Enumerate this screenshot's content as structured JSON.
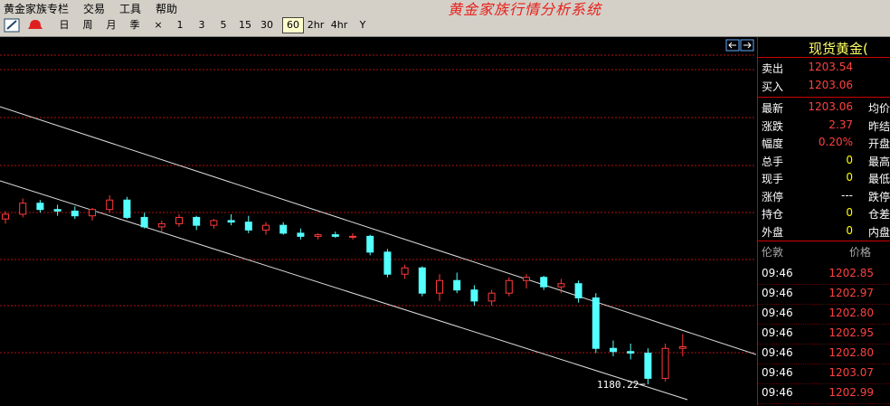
{
  "menu": [
    "黄金家族专栏",
    "交易",
    "工具",
    "帮助"
  ],
  "app_title": "黄金家族行情分析系统",
  "toolbar": [
    "日",
    "周",
    "月",
    "季",
    "×",
    "1",
    "3",
    "5",
    "15",
    "30",
    "60",
    "2hr",
    "4hr",
    "Y"
  ],
  "active_period_index": 10,
  "chart": {
    "up_color": "#ff3a3a",
    "down_color": "#54ffff",
    "low_label": "1180.22",
    "low_candle_index": 37,
    "candles": [
      [
        1285,
        1290,
        1282,
        1288
      ],
      [
        1288,
        1298,
        1286,
        1295
      ],
      [
        1295,
        1297,
        1289,
        1291
      ],
      [
        1291,
        1294,
        1287,
        1290
      ],
      [
        1290,
        1293,
        1285,
        1287
      ],
      [
        1287,
        1292,
        1284,
        1291
      ],
      [
        1291,
        1300,
        1289,
        1297
      ],
      [
        1297,
        1299,
        1285,
        1286
      ],
      [
        1286,
        1289,
        1279,
        1280
      ],
      [
        1280,
        1284,
        1277,
        1282
      ],
      [
        1282,
        1288,
        1280,
        1286
      ],
      [
        1286,
        1287,
        1278,
        1281
      ],
      [
        1281,
        1285,
        1279,
        1284
      ],
      [
        1284,
        1288,
        1281,
        1283
      ],
      [
        1283,
        1287,
        1276,
        1278
      ],
      [
        1278,
        1283,
        1275,
        1281
      ],
      [
        1281,
        1283,
        1275,
        1276
      ],
      [
        1276,
        1279,
        1272,
        1274
      ],
      [
        1274,
        1276,
        1272,
        1275
      ],
      [
        1275,
        1277,
        1273,
        1274
      ],
      [
        1274,
        1276,
        1272,
        1274
      ],
      [
        1274,
        1275,
        1262,
        1264
      ],
      [
        1264,
        1266,
        1248,
        1250
      ],
      [
        1250,
        1256,
        1247,
        1254
      ],
      [
        1254,
        1255,
        1236,
        1238
      ],
      [
        1238,
        1250,
        1233,
        1246
      ],
      [
        1246,
        1251,
        1238,
        1240
      ],
      [
        1240,
        1243,
        1230,
        1233
      ],
      [
        1233,
        1240,
        1230,
        1238
      ],
      [
        1238,
        1248,
        1236,
        1246
      ],
      [
        1246,
        1250,
        1241,
        1248
      ],
      [
        1248,
        1249,
        1240,
        1242
      ],
      [
        1242,
        1247,
        1238,
        1244
      ],
      [
        1244,
        1246,
        1232,
        1235
      ],
      [
        1235,
        1238,
        1200,
        1203
      ],
      [
        1203,
        1208,
        1198,
        1201
      ],
      [
        1201,
        1206,
        1196,
        1200
      ],
      [
        1200,
        1203,
        1180.22,
        1184
      ],
      [
        1184,
        1206,
        1182,
        1203
      ],
      [
        1203,
        1212,
        1198,
        1204
      ]
    ]
  },
  "quote": {
    "title": "现货黄金(",
    "rows": [
      {
        "label": "卖出",
        "value": "1203.54",
        "color": "#ff4040"
      },
      {
        "label": "买入",
        "value": "1203.06",
        "color": "#ff4040"
      },
      {
        "label": "最新",
        "value": "1203.06",
        "label2": "均价",
        "color": "#ff4040"
      },
      {
        "label": "涨跌",
        "value": "2.37",
        "label2": "昨结",
        "color": "#ff4040"
      },
      {
        "label": "幅度",
        "value": "0.20%",
        "label2": "开盘",
        "color": "#ff4040"
      },
      {
        "label": "总手",
        "value": "0",
        "label2": "最高",
        "color": "#ffff00"
      },
      {
        "label": "现手",
        "value": "0",
        "label2": "最低",
        "color": "#ffff00"
      },
      {
        "label": "涨停",
        "value": "---",
        "label2": "跌停",
        "color": "#ffffff"
      },
      {
        "label": "持仓",
        "value": "0",
        "label2": "仓差",
        "color": "#ffff00"
      },
      {
        "label": "外盘",
        "value": "0",
        "label2": "内盘",
        "color": "#ffff00"
      }
    ]
  },
  "trades": {
    "header": [
      "伦敦",
      "价格"
    ],
    "rows": [
      [
        "09:46",
        "1202.85"
      ],
      [
        "09:46",
        "1202.97"
      ],
      [
        "09:46",
        "1202.80"
      ],
      [
        "09:46",
        "1202.95"
      ],
      [
        "09:46",
        "1202.80"
      ],
      [
        "09:46",
        "1203.07"
      ],
      [
        "09:46",
        "1202.99"
      ]
    ]
  }
}
